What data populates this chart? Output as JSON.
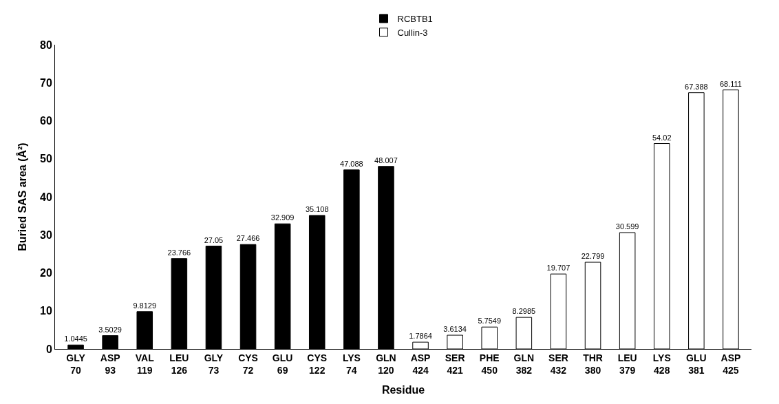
{
  "chart_data": {
    "type": "bar",
    "xlabel": "Residue",
    "ylabel": "Buried SAS area (Å²)",
    "categories": [
      "GLY 70",
      "ASP 93",
      "VAL 119",
      "LEU 126",
      "GLY 73",
      "CYS 72",
      "GLU 69",
      "CYS 122",
      "LYS 74",
      "GLN 120",
      "ASP 424",
      "SER 421",
      "PHE 450",
      "GLN 382",
      "SER 432",
      "THR 380",
      "LEU 379",
      "LYS 428",
      "GLU 381",
      "ASP 425"
    ],
    "series": [
      {
        "name": "RCBTB1",
        "color": "#000000",
        "values": [
          1.0445,
          3.5029,
          9.8129,
          23.766,
          27.05,
          27.466,
          32.909,
          35.108,
          47.088,
          48.007,
          null,
          null,
          null,
          null,
          null,
          null,
          null,
          null,
          null,
          null
        ]
      },
      {
        "name": "Cullin-3",
        "color": "#ffffff",
        "values": [
          null,
          null,
          null,
          null,
          null,
          null,
          null,
          null,
          null,
          null,
          1.7864,
          3.6134,
          5.7549,
          8.2985,
          19.707,
          22.799,
          30.599,
          54.02,
          67.388,
          68.111
        ]
      }
    ],
    "ylim": [
      0,
      80
    ],
    "yticks": [
      0,
      10,
      20,
      30,
      40,
      50,
      60,
      70,
      80
    ],
    "legend": "top",
    "data_labels": true
  }
}
